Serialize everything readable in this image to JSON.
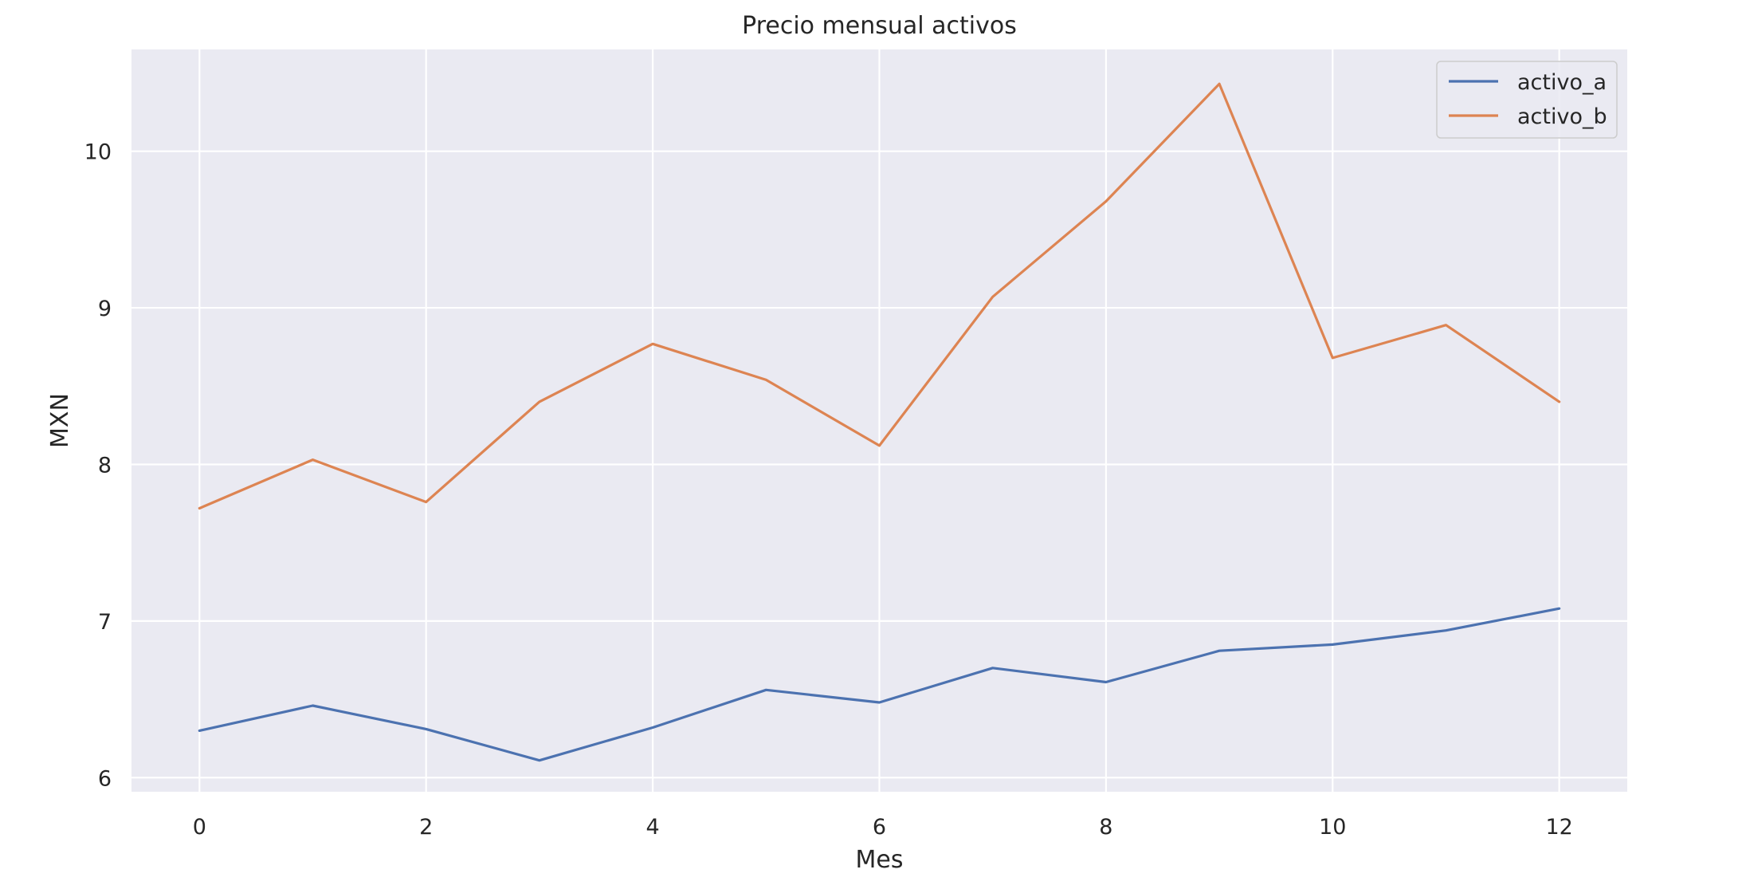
{
  "chart_data": {
    "type": "line",
    "title": "Precio mensual activos",
    "xlabel": "Mes",
    "ylabel": "MXN",
    "x": [
      0,
      1,
      2,
      3,
      4,
      5,
      6,
      7,
      8,
      9,
      10,
      11,
      12
    ],
    "xlim": [
      -0.6,
      12.6
    ],
    "ylim": [
      5.91,
      10.65
    ],
    "xticks": [
      0,
      2,
      4,
      6,
      8,
      10,
      12
    ],
    "yticks": [
      6,
      7,
      8,
      9,
      10
    ],
    "grid": true,
    "legend_position": "top-right",
    "background": "#EAEAF2",
    "series": [
      {
        "name": "activo_a",
        "color": "#4C72B0",
        "values": [
          6.3,
          6.46,
          6.31,
          6.11,
          6.32,
          6.56,
          6.48,
          6.7,
          6.61,
          6.81,
          6.85,
          6.94,
          7.08
        ]
      },
      {
        "name": "activo_b",
        "color": "#DD8452",
        "values": [
          7.72,
          8.03,
          7.76,
          8.4,
          8.77,
          8.54,
          8.12,
          9.07,
          9.68,
          10.43,
          8.68,
          8.89,
          8.4
        ]
      }
    ]
  }
}
